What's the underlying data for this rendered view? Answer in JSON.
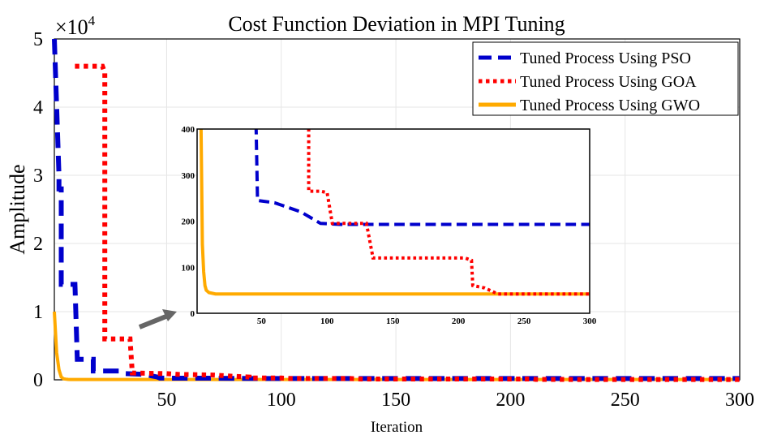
{
  "chart_data": {
    "type": "line",
    "title": "Cost Function Deviation in MPI Tuning",
    "xlabel": "Iteration",
    "ylabel": "Amplitude",
    "y_exponent_label": "×10",
    "y_exponent_power": "4",
    "xlim": [
      1,
      300
    ],
    "ylim": [
      0,
      50000
    ],
    "grid": true,
    "legend_position": "top-right",
    "xticks": [
      50,
      100,
      150,
      200,
      250,
      300
    ],
    "yticks": [
      0,
      1,
      2,
      3,
      4,
      5
    ],
    "series": [
      {
        "name": "Tuned Process Using PSO",
        "color": "#0000cc",
        "style": "dashed",
        "points": [
          [
            1,
            50000
          ],
          [
            3,
            30000
          ],
          [
            3,
            28000
          ],
          [
            4,
            28000
          ],
          [
            4,
            14000
          ],
          [
            10,
            14000
          ],
          [
            11,
            3000
          ],
          [
            18,
            3000
          ],
          [
            18,
            1300
          ],
          [
            30,
            1300
          ],
          [
            32,
            900
          ],
          [
            40,
            800
          ],
          [
            46,
            400
          ],
          [
            47,
            245
          ],
          [
            60,
            240
          ],
          [
            65,
            235
          ],
          [
            80,
            220
          ],
          [
            95,
            195
          ],
          [
            110,
            193
          ],
          [
            300,
            193
          ]
        ]
      },
      {
        "name": "Tuned Process Using GOA",
        "color": "#ff0000",
        "style": "dotted",
        "points": [
          [
            10,
            46000
          ],
          [
            22,
            46000
          ],
          [
            23,
            45000
          ],
          [
            23,
            6000
          ],
          [
            34,
            6000
          ],
          [
            35,
            1000
          ],
          [
            50,
            900
          ],
          [
            55,
            800
          ],
          [
            70,
            700
          ],
          [
            80,
            500
          ],
          [
            86,
            400
          ],
          [
            86,
            265
          ],
          [
            95,
            265
          ],
          [
            100,
            262
          ],
          [
            104,
            195
          ],
          [
            130,
            195
          ],
          [
            135,
            120
          ],
          [
            205,
            120
          ],
          [
            210,
            115
          ],
          [
            211,
            60
          ],
          [
            220,
            55
          ],
          [
            230,
            42
          ],
          [
            300,
            42
          ]
        ]
      },
      {
        "name": "Tuned Process Using GWO",
        "color": "#ffaa00",
        "style": "solid",
        "points": [
          [
            1,
            10000
          ],
          [
            2,
            4000
          ],
          [
            3,
            1500
          ],
          [
            4,
            400
          ],
          [
            5,
            150
          ],
          [
            6,
            90
          ],
          [
            7,
            60
          ],
          [
            8,
            50
          ],
          [
            10,
            45
          ],
          [
            15,
            42
          ],
          [
            300,
            42
          ]
        ]
      }
    ],
    "inset": {
      "xlim": [
        1,
        300
      ],
      "ylim": [
        0,
        400
      ],
      "xticks": [
        50,
        100,
        150,
        200,
        250,
        300
      ],
      "yticks": [
        0,
        100,
        200,
        300,
        400
      ]
    }
  }
}
